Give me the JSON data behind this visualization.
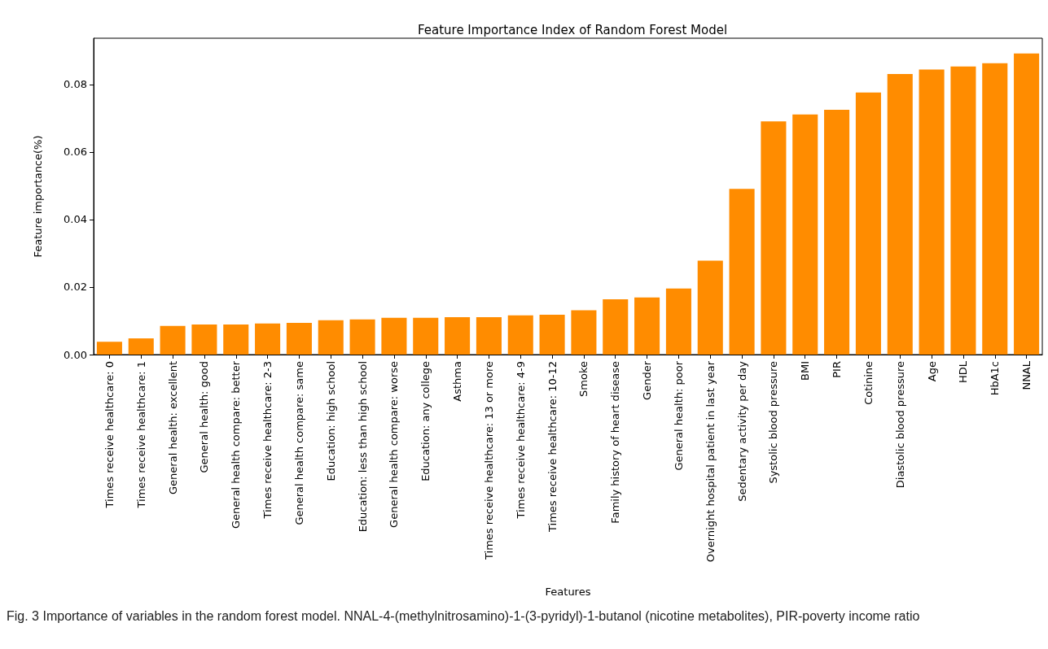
{
  "chart_data": {
    "type": "bar",
    "title": "Feature Importance Index of Random Forest Model",
    "xlabel": "Features",
    "ylabel": "Feature importance(%)",
    "categories": [
      "Times receive healthcare: 0",
      "Times receive healthcare: 1",
      "General health: excellent",
      "General health: good",
      "General health compare: better",
      "Times receive healthcare: 2-3",
      "General health compare: same",
      "Education: high school",
      "Education: less than high school",
      "General health compare: worse",
      "Education: any college",
      "Asthma",
      "Times receive healthcare: 13 or more",
      "Times receive healthcare: 4-9",
      "Times receive healthcare: 10-12",
      "Smoke",
      "Family history of heart disease",
      "Gender",
      "General health: poor",
      "Overnight hospital patient in last year",
      "Sedentary activity per day",
      "Systolic blood pressure",
      "BMI",
      "PIR",
      "Cotinine",
      "Diastolic blood pressure",
      "Age",
      "HDL",
      "HbA1c",
      "NNAL"
    ],
    "values": [
      0.0038,
      0.0048,
      0.0085,
      0.0089,
      0.0089,
      0.0092,
      0.0094,
      0.0102,
      0.0104,
      0.0109,
      0.0109,
      0.0111,
      0.0111,
      0.0116,
      0.0118,
      0.0131,
      0.0164,
      0.0169,
      0.0196,
      0.0278,
      0.0491,
      0.0691,
      0.0711,
      0.0725,
      0.0776,
      0.0831,
      0.0844,
      0.0853,
      0.0863,
      0.0892
    ],
    "color": "#ff8c00",
    "ylim": [
      0,
      0.0937
    ],
    "yticks": [
      {
        "value": 0,
        "label": "0.00"
      },
      {
        "value": 0.02,
        "label": "0.02"
      },
      {
        "value": 0.04,
        "label": "0.04"
      },
      {
        "value": 0.06,
        "label": "0.06"
      },
      {
        "value": 0.08,
        "label": "0.08"
      }
    ],
    "grid": false,
    "annotations": [
      "Fig. 3  Importance of variables in the random forest model. NNAL-4-(methylnitrosamino)-1-(3-pyridyl)-1-butanol (nicotine metabolites), PIR-poverty income ratio"
    ]
  }
}
